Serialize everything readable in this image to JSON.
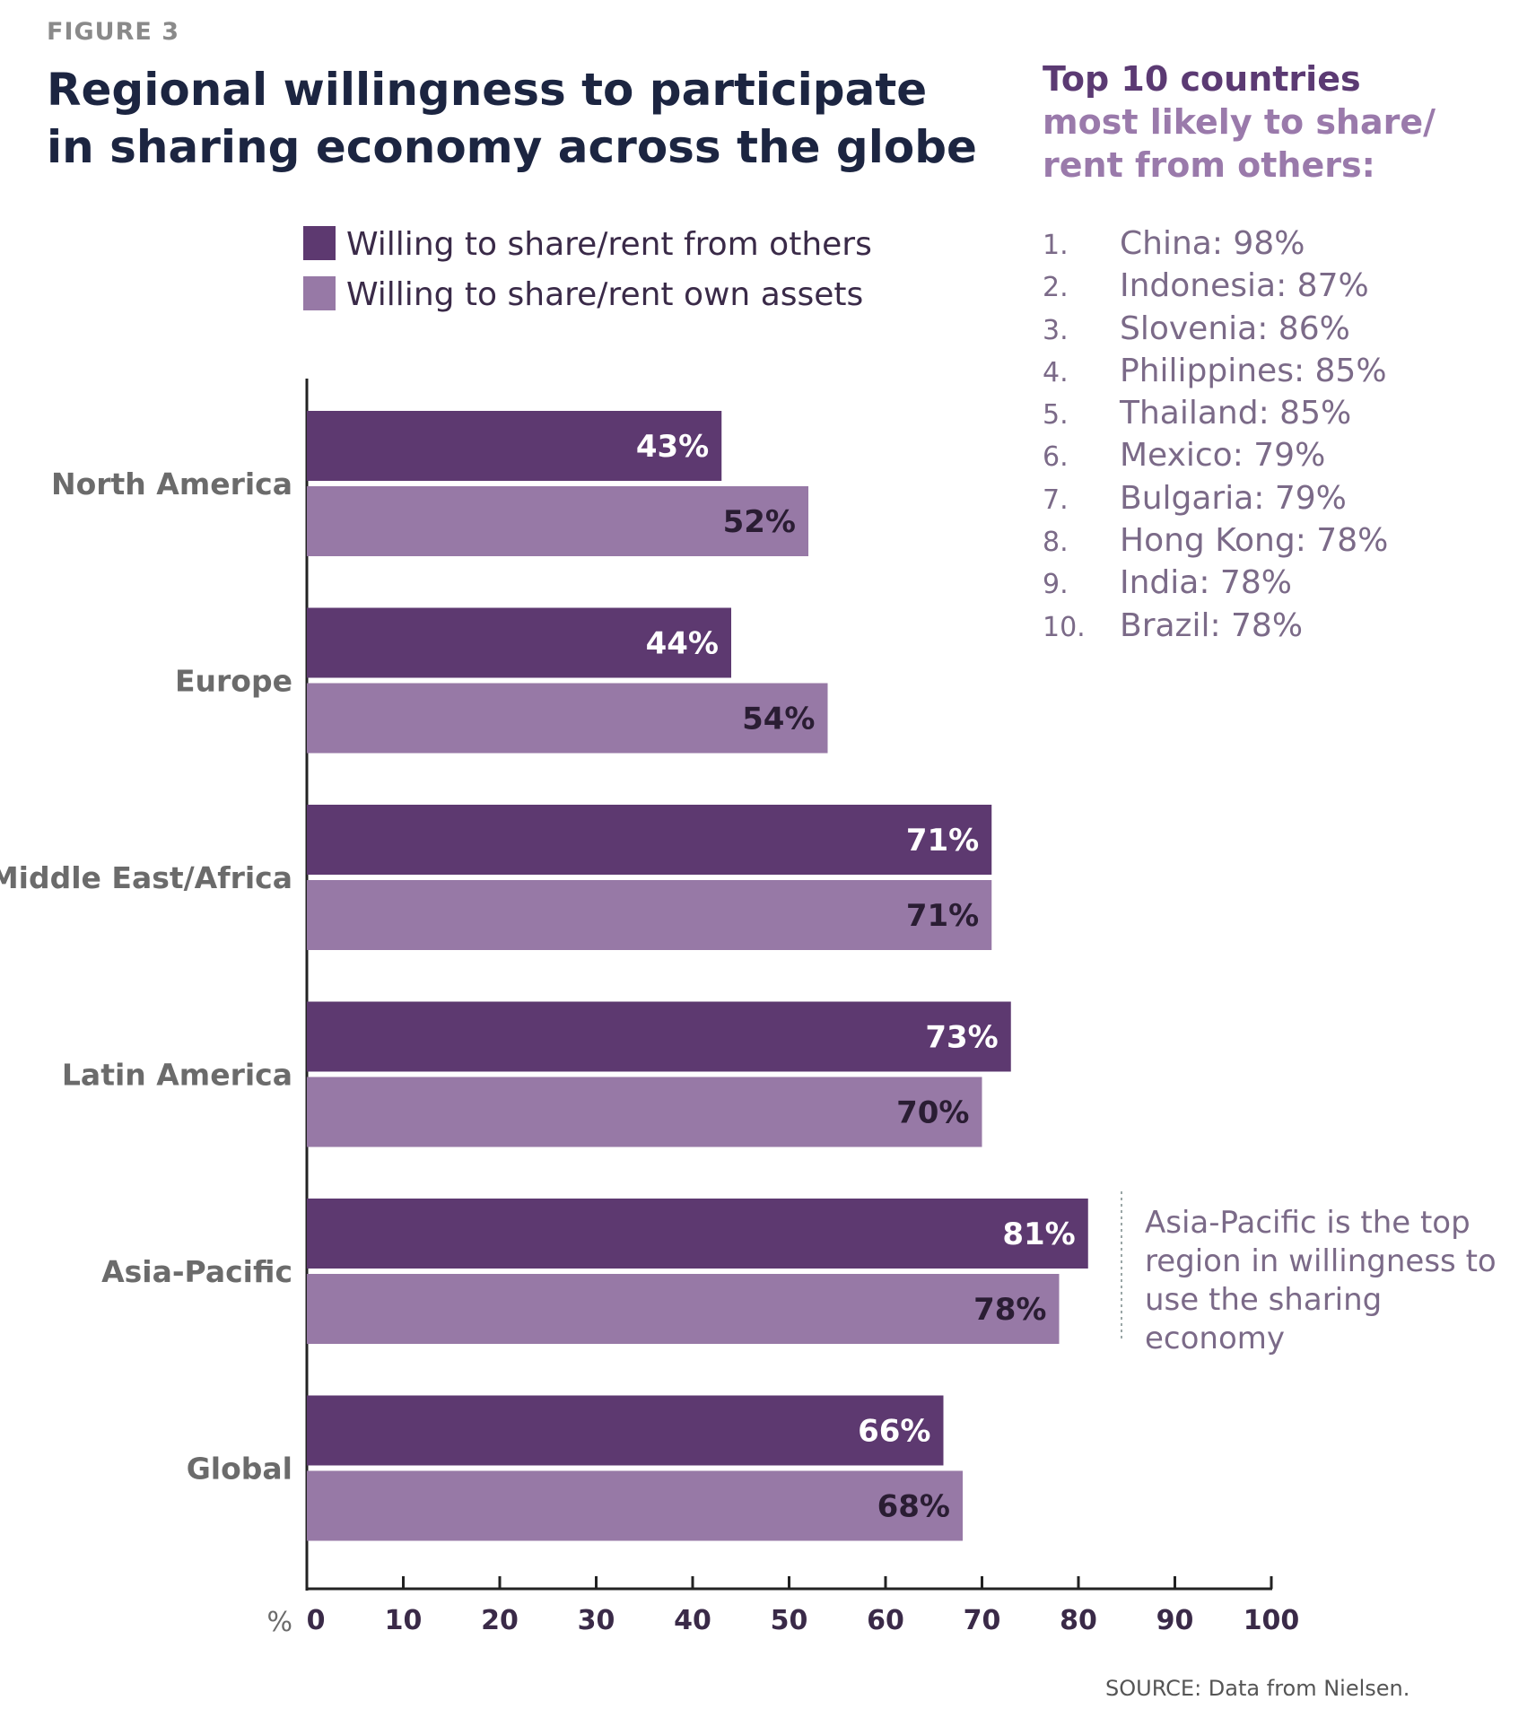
{
  "figure_label": "FIGURE 3",
  "colors": {
    "series_from_others": "#5d3970",
    "series_own_assets": "#9779a6",
    "axis": "#222222",
    "callout_line": "#9aa6a6"
  },
  "top10": {
    "heading_dark": "Top 10 countries",
    "heading_light": "most likely to share/ rent from others:",
    "items": [
      {
        "rank": "1.",
        "text": "China: 98%"
      },
      {
        "rank": "2.",
        "text": "Indonesia: 87%"
      },
      {
        "rank": "3.",
        "text": "Slovenia: 86%"
      },
      {
        "rank": "4.",
        "text": "Philippines: 85%"
      },
      {
        "rank": "5.",
        "text": "Thailand: 85%"
      },
      {
        "rank": "6.",
        "text": "Mexico: 79%"
      },
      {
        "rank": "7.",
        "text": "Bulgaria: 79%"
      },
      {
        "rank": "8.",
        "text": "Hong Kong: 78%"
      },
      {
        "rank": "9.",
        "text": "India: 78%"
      },
      {
        "rank": "10.",
        "text": "Brazil: 78%"
      }
    ]
  },
  "annotation": "Asia-Pacific is the top region in willingness to use the sharing economy",
  "source": "SOURCE: Data from Nielsen.",
  "chart_data": {
    "type": "bar",
    "orientation": "horizontal",
    "title": "Regional willingness to participate in sharing economy across the globe",
    "xlabel": "%",
    "ylabel": "",
    "xlim": [
      0,
      100
    ],
    "xticks": [
      0,
      10,
      20,
      30,
      40,
      50,
      60,
      70,
      80,
      90,
      100
    ],
    "categories": [
      "North America",
      "Europe",
      "Middle East/Africa",
      "Latin America",
      "Asia-Pacific",
      "Global"
    ],
    "series": [
      {
        "name": "Willing to share/rent from others",
        "values": [
          43,
          44,
          71,
          73,
          81,
          66
        ],
        "labels": [
          "43%",
          "44%",
          "71%",
          "73%",
          "81%",
          "66%"
        ]
      },
      {
        "name": "Willing to share/rent own assets",
        "values": [
          52,
          54,
          71,
          70,
          78,
          68
        ],
        "labels": [
          "52%",
          "54%",
          "71%",
          "70%",
          "78%",
          "68%"
        ]
      }
    ],
    "legend_position": "top",
    "grid": false
  }
}
